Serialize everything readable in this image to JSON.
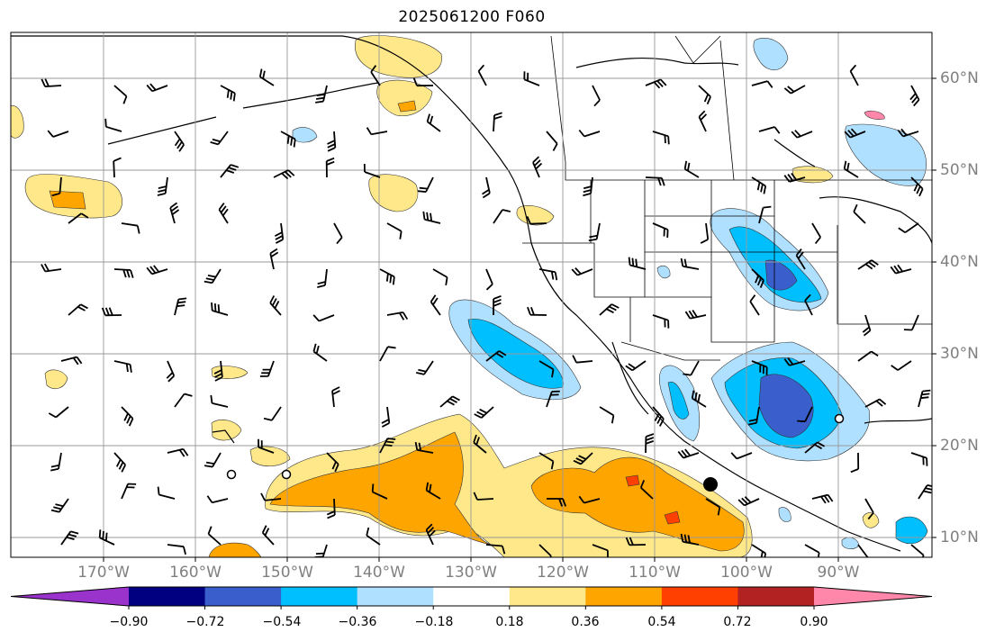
{
  "title": "2025061200 F060",
  "map": {
    "lon_labels": [
      "170°W",
      "160°W",
      "150°W",
      "140°W",
      "130°W",
      "120°W",
      "110°W",
      "100°W",
      "90°W"
    ],
    "lat_labels": [
      "60°N",
      "50°N",
      "40°N",
      "30°N",
      "20°N",
      "10°N"
    ]
  },
  "colorbar": {
    "ticks": [
      "−0.90",
      "−0.72",
      "−0.54",
      "−0.36",
      "−0.18",
      "0.18",
      "0.36",
      "0.54",
      "0.72",
      "0.90"
    ],
    "colors": [
      "#9933cc",
      "#000080",
      "#3a5fcd",
      "#00bfff",
      "#b0e0ff",
      "#ffffff",
      "#ffe88a",
      "#ffa500",
      "#ff4000",
      "#b22222",
      "#ff88aa"
    ]
  }
}
